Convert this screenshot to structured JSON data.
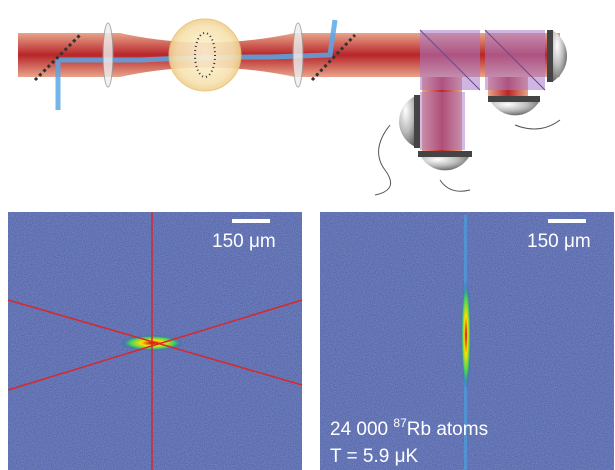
{
  "panels": [
    {
      "scale_bar": "150 μm"
    },
    {
      "scale_bar": "150 μm",
      "atoms_number": "24 000",
      "isotope": "87",
      "atoms_text": "Rb atoms",
      "temperature": "T = 5.9 μK"
    }
  ]
}
